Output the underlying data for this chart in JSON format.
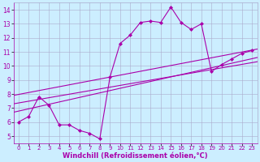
{
  "background_color": "#cceeff",
  "grid_color": "#aaaacc",
  "line_color": "#aa00aa",
  "marker_color": "#aa00aa",
  "xlabel": "Windchill (Refroidissement éolien,°C)",
  "xlabel_fontsize": 6.0,
  "xtick_fontsize": 5.0,
  "ytick_fontsize": 5.5,
  "xlim": [
    -0.5,
    23.5
  ],
  "ylim": [
    4.5,
    14.5
  ],
  "xticks": [
    0,
    1,
    2,
    3,
    4,
    5,
    6,
    7,
    8,
    9,
    10,
    11,
    12,
    13,
    14,
    15,
    16,
    17,
    18,
    19,
    20,
    21,
    22,
    23
  ],
  "yticks": [
    5,
    6,
    7,
    8,
    9,
    10,
    11,
    12,
    13,
    14
  ],
  "series_main": {
    "x": [
      0,
      1,
      2,
      3,
      4,
      5,
      6,
      7,
      8,
      9,
      10,
      11,
      12,
      13,
      14,
      15,
      16,
      17,
      18,
      19,
      20,
      21,
      22,
      23
    ],
    "y": [
      6.0,
      6.4,
      7.8,
      7.2,
      5.8,
      5.8,
      5.4,
      5.2,
      4.8,
      9.2,
      11.6,
      12.2,
      13.1,
      13.2,
      13.1,
      14.2,
      13.1,
      12.6,
      13.0,
      9.6,
      10.1,
      10.5,
      10.9,
      11.1
    ],
    "marker": "D",
    "markersize": 2.0,
    "linewidth": 0.8
  },
  "regression_lines": [
    {
      "x0": -0.5,
      "y0": 7.3,
      "x1": 23.5,
      "y1": 10.3
    },
    {
      "x0": -0.5,
      "y0": 6.7,
      "x1": 23.5,
      "y1": 10.6
    },
    {
      "x0": -0.5,
      "y0": 7.9,
      "x1": 23.5,
      "y1": 11.2
    }
  ],
  "reg_linewidth": 0.8
}
